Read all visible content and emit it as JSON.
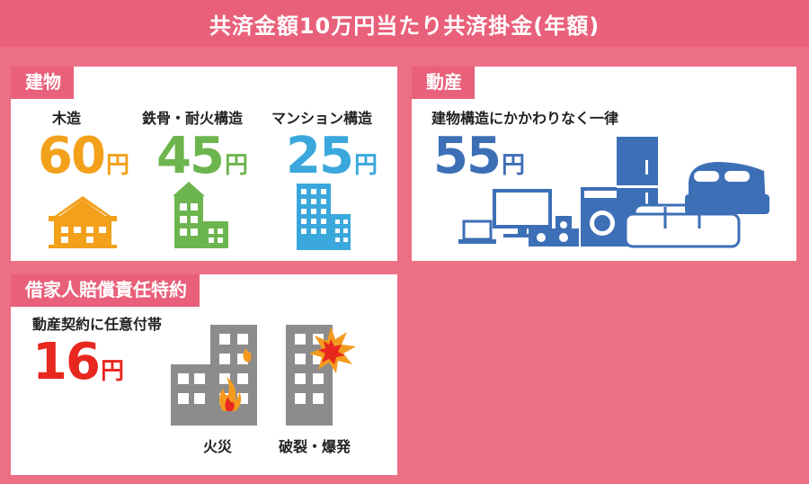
{
  "header": {
    "title": "共済金額10万円当たり共済掛金(年額)"
  },
  "building": {
    "tag": "建物",
    "items": [
      {
        "type": "木造",
        "amount": "60",
        "unit": "円",
        "color": "#f3a01b"
      },
      {
        "type": "鉄骨・耐火構造",
        "amount": "45",
        "unit": "円",
        "color": "#6db54e"
      },
      {
        "type": "マンション構造",
        "amount": "25",
        "unit": "円",
        "color": "#3aa8dc"
      }
    ]
  },
  "contents": {
    "tag": "動産",
    "label": "建物構造にかかわりなく一律",
    "amount": "55",
    "unit": "円",
    "color": "#3d6fb6"
  },
  "liability": {
    "tag": "借家人賠償責任特約",
    "label": "動産契約に任意付帯",
    "amount": "16",
    "unit": "円",
    "color": "#e8271f",
    "captions": {
      "fire": "火災",
      "explosion": "破裂・爆発"
    }
  }
}
